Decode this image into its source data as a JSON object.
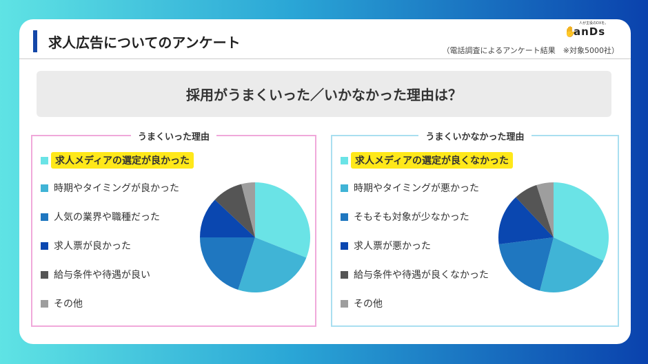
{
  "header": {
    "title": "求人広告についてのアンケート",
    "note": "（電話調査によるアンケート結果　※対象5000社）",
    "logo": {
      "tagline": "人が主役のDXを。",
      "name": "anDs"
    }
  },
  "question": "採用がうまくいった／いかなかった理由は？",
  "colors": [
    "#6ae3e6",
    "#40b4d6",
    "#1f77c0",
    "#0a47b0",
    "#555555",
    "#9e9e9e"
  ],
  "chart_data": [
    {
      "type": "pie",
      "title": "うまくいった理由",
      "categories": [
        "求人メディアの選定が良かった",
        "時期やタイミングが良かった",
        "人気の業界や職種だった",
        "求人票が良かった",
        "給与条件や待遇が良い",
        "その他"
      ],
      "values": [
        31,
        24,
        20,
        12,
        9,
        4
      ],
      "highlighted": 0
    },
    {
      "type": "pie",
      "title": "うまくいかなかった理由",
      "categories": [
        "求人メディアの選定が良くなかった",
        "時期やタイミングが悪かった",
        "そもそも対象が少なかった",
        "求人票が悪かった",
        "給与条件や待遇が良くなかった",
        "その他"
      ],
      "values": [
        32,
        22,
        19,
        15,
        7,
        5
      ],
      "highlighted": 0
    }
  ]
}
